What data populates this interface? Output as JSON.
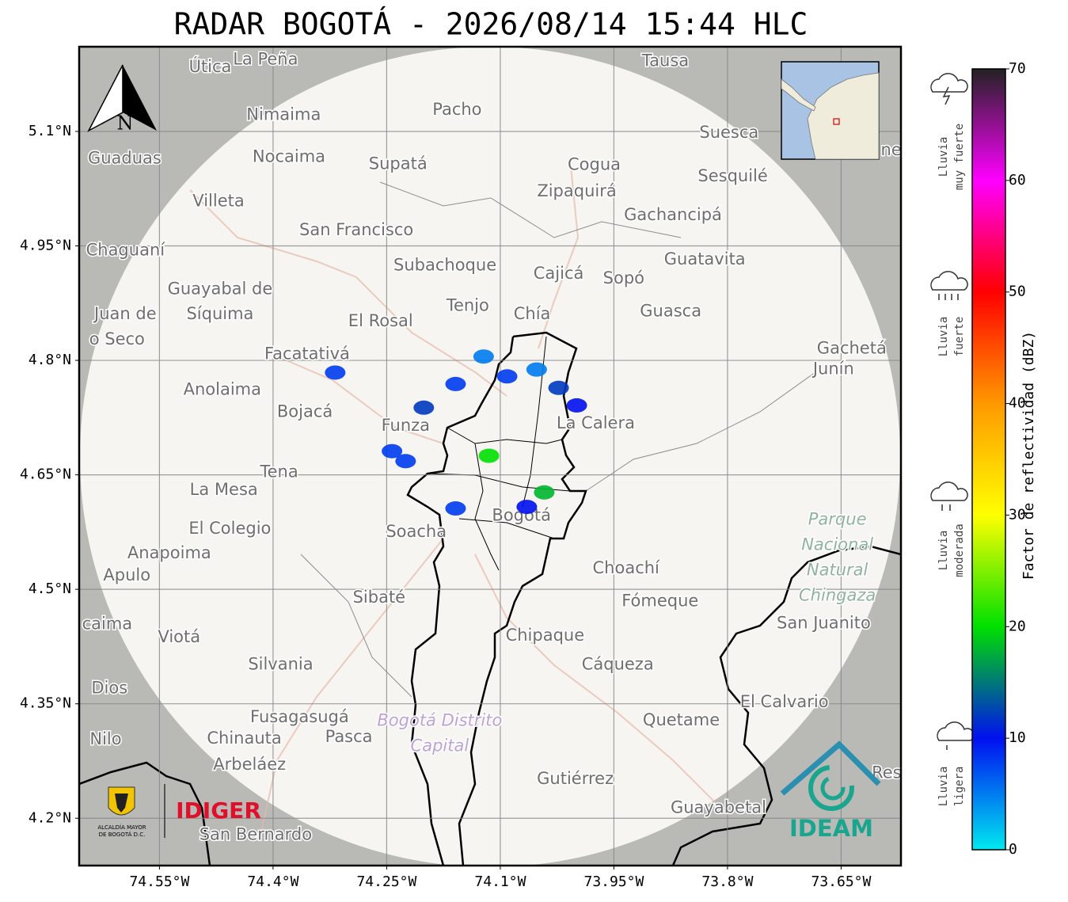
{
  "title": "RADAR BOGOTÁ - 2026/08/14 15:44 HLC",
  "map": {
    "type": "map",
    "xlim": [
      -74.656,
      -73.571
    ],
    "ylim": [
      4.138,
      5.211
    ],
    "xticks": [
      {
        "value": -74.55,
        "label": "74.55°W"
      },
      {
        "value": -74.4,
        "label": "74.4°W"
      },
      {
        "value": -74.25,
        "label": "74.25°W"
      },
      {
        "value": -74.1,
        "label": "74.1°W"
      },
      {
        "value": -73.95,
        "label": "73.95°W"
      },
      {
        "value": -73.8,
        "label": "73.8°W"
      },
      {
        "value": -73.65,
        "label": "73.65°W"
      }
    ],
    "yticks": [
      {
        "value": 4.2,
        "label": "4.2°N"
      },
      {
        "value": 4.35,
        "label": "4.35°N"
      },
      {
        "value": 4.5,
        "label": "4.5°N"
      },
      {
        "value": 4.65,
        "label": "4.65°N"
      },
      {
        "value": 4.8,
        "label": "4.8°N"
      },
      {
        "value": 4.95,
        "label": "4.95°N"
      },
      {
        "value": 5.1,
        "label": "5.1°N"
      }
    ],
    "grid": true,
    "places": [
      {
        "name": "Útica",
        "lon": -74.483,
        "lat": 5.184
      },
      {
        "name": "La Peña",
        "lon": -74.41,
        "lat": 5.194
      },
      {
        "name": "Tausa",
        "lon": -73.882,
        "lat": 5.192
      },
      {
        "name": "Nimaima",
        "lon": -74.386,
        "lat": 5.121
      },
      {
        "name": "Pacho",
        "lon": -74.157,
        "lat": 5.128
      },
      {
        "name": "Guaduas",
        "lon": -74.596,
        "lat": 5.064
      },
      {
        "name": "Nocaima",
        "lon": -74.379,
        "lat": 5.066
      },
      {
        "name": "Supatá",
        "lon": -74.235,
        "lat": 5.057
      },
      {
        "name": "Cogua",
        "lon": -73.976,
        "lat": 5.056
      },
      {
        "name": "Suesca",
        "lon": -73.798,
        "lat": 5.098
      },
      {
        "name": "Sesquilé",
        "lon": -73.793,
        "lat": 5.041
      },
      {
        "name": "Zipaquirá",
        "lon": -73.999,
        "lat": 5.021
      },
      {
        "name": "ne",
        "lon": -73.584,
        "lat": 5.075
      },
      {
        "name": "Villeta",
        "lon": -74.472,
        "lat": 5.008
      },
      {
        "name": "Gachancipá",
        "lon": -73.872,
        "lat": 4.99
      },
      {
        "name": "San Francisco",
        "lon": -74.29,
        "lat": 4.97
      },
      {
        "name": "Chaguaní",
        "lon": -74.595,
        "lat": 4.944
      },
      {
        "name": "Guatavita",
        "lon": -73.83,
        "lat": 4.932
      },
      {
        "name": "Subachoque",
        "lon": -74.173,
        "lat": 4.924
      },
      {
        "name": "Cajicá",
        "lon": -74.023,
        "lat": 4.913
      },
      {
        "name": "Sopó",
        "lon": -73.937,
        "lat": 4.907
      },
      {
        "name": "Guayabal de",
        "lon": -74.47,
        "lat": 4.893
      },
      {
        "name": "Síquima",
        "lon": -74.47,
        "lat": 4.86
      },
      {
        "name": "Tenjo",
        "lon": -74.143,
        "lat": 4.871
      },
      {
        "name": "Chía",
        "lon": -74.058,
        "lat": 4.86
      },
      {
        "name": "Guasca",
        "lon": -73.875,
        "lat": 4.864
      },
      {
        "name": "Juan de",
        "lon": -74.595,
        "lat": 4.86
      },
      {
        "name": "o Seco",
        "lon": -74.606,
        "lat": 4.827
      },
      {
        "name": "El Rosal",
        "lon": -74.258,
        "lat": 4.851
      },
      {
        "name": "Facatativá",
        "lon": -74.355,
        "lat": 4.808
      },
      {
        "name": "Gachetá",
        "lon": -73.636,
        "lat": 4.815
      },
      {
        "name": "Junín",
        "lon": -73.66,
        "lat": 4.788
      },
      {
        "name": "Anolaima",
        "lon": -74.467,
        "lat": 4.761
      },
      {
        "name": "Bojacá",
        "lon": -74.358,
        "lat": 4.732
      },
      {
        "name": "Funza",
        "lon": -74.225,
        "lat": 4.714
      },
      {
        "name": "La Calera",
        "lon": -73.974,
        "lat": 4.717
      },
      {
        "name": "Tena",
        "lon": -74.392,
        "lat": 4.653
      },
      {
        "name": "La Mesa",
        "lon": -74.465,
        "lat": 4.63
      },
      {
        "name": "Bogotá",
        "lon": -74.072,
        "lat": 4.596
      },
      {
        "name": "Soacha",
        "lon": -74.211,
        "lat": 4.575
      },
      {
        "name": "El Colegio",
        "lon": -74.457,
        "lat": 4.579
      },
      {
        "name": "Anapoima",
        "lon": -74.537,
        "lat": 4.547
      },
      {
        "name": "Apulo",
        "lon": -74.593,
        "lat": 4.518
      },
      {
        "name": "Choachí",
        "lon": -73.934,
        "lat": 4.527
      },
      {
        "name": "Sibaté",
        "lon": -74.26,
        "lat": 4.489
      },
      {
        "name": "Fómeque",
        "lon": -73.889,
        "lat": 4.484
      },
      {
        "name": "San Juanito",
        "lon": -73.673,
        "lat": 4.455
      },
      {
        "name": "caima",
        "lon": -74.619,
        "lat": 4.454
      },
      {
        "name": "Viotá",
        "lon": -74.524,
        "lat": 4.437
      },
      {
        "name": "Chipaque",
        "lon": -74.041,
        "lat": 4.439
      },
      {
        "name": "Silvania",
        "lon": -74.39,
        "lat": 4.401
      },
      {
        "name": "Cáqueza",
        "lon": -73.945,
        "lat": 4.401
      },
      {
        "name": "Dios",
        "lon": -74.616,
        "lat": 4.37
      },
      {
        "name": "El Calvario",
        "lon": -73.725,
        "lat": 4.352
      },
      {
        "name": "Fusagasugá",
        "lon": -74.365,
        "lat": 4.332
      },
      {
        "name": "Quetame",
        "lon": -73.861,
        "lat": 4.328
      },
      {
        "name": "Nilo",
        "lon": -74.621,
        "lat": 4.303
      },
      {
        "name": "Chinauta",
        "lon": -74.438,
        "lat": 4.304
      },
      {
        "name": "Pasca",
        "lon": -74.3,
        "lat": 4.306
      },
      {
        "name": "Arbeláez",
        "lon": -74.431,
        "lat": 4.27
      },
      {
        "name": "Res",
        "lon": -73.59,
        "lat": 4.259
      },
      {
        "name": "Gutiérrez",
        "lon": -74.001,
        "lat": 4.251
      },
      {
        "name": "Guayabetal",
        "lon": -73.812,
        "lat": 4.213
      },
      {
        "name": "San Bernardo",
        "lon": -74.423,
        "lat": 4.178
      }
    ],
    "areas": [
      {
        "lines": [
          "Parque",
          "Nacional",
          "Natural",
          "Chingaza"
        ],
        "lon": -73.655,
        "lat": 4.541,
        "style": "park"
      },
      {
        "lines": [
          "Bogotá Distrito",
          "Capital"
        ],
        "lon": -74.18,
        "lat": 4.311,
        "style": "district"
      }
    ],
    "echoes": [
      {
        "lon": -74.201,
        "lat": 4.738,
        "dbz": 12
      },
      {
        "lon": -74.243,
        "lat": 4.681,
        "dbz": 8
      },
      {
        "lon": -74.225,
        "lat": 4.668,
        "dbz": 8
      },
      {
        "lon": -74.122,
        "lat": 4.805,
        "dbz": 5
      },
      {
        "lon": -74.091,
        "lat": 4.779,
        "dbz": 8
      },
      {
        "lon": -74.159,
        "lat": 4.769,
        "dbz": 8
      },
      {
        "lon": -74.023,
        "lat": 4.764,
        "dbz": 12
      },
      {
        "lon": -73.999,
        "lat": 4.741,
        "dbz": 10
      },
      {
        "lon": -74.318,
        "lat": 4.784,
        "dbz": 8
      },
      {
        "lon": -74.052,
        "lat": 4.788,
        "dbz": 5
      },
      {
        "lon": -74.159,
        "lat": 4.606,
        "dbz": 8
      },
      {
        "lon": -74.065,
        "lat": 4.608,
        "dbz": 10
      },
      {
        "lon": -74.115,
        "lat": 4.675,
        "dbz": 20
      },
      {
        "lon": -74.042,
        "lat": 4.627,
        "dbz": 18
      }
    ]
  },
  "colorbar": {
    "label": "Factor de reflectividad (dBZ)",
    "lim": [
      0,
      70
    ],
    "ticks": [
      0,
      10,
      20,
      30,
      40,
      50,
      60,
      70
    ],
    "colors": [
      "#00e8f0",
      "#0010f0",
      "#00e000",
      "#ffff00",
      "#ff9900",
      "#ff0000",
      "#ff00ff",
      "#222222"
    ]
  },
  "rain_levels": [
    {
      "lines": [
        "Lluvia",
        "muy fuerte"
      ]
    },
    {
      "lines": [
        "Lluvia",
        "fuerte"
      ]
    },
    {
      "lines": [
        "Lluvia",
        "moderada"
      ]
    },
    {
      "lines": [
        "Lluvia",
        "ligera"
      ]
    }
  ],
  "north": "N",
  "logos": {
    "alcaldia": [
      "ALCALDÍA MAYOR",
      "DE BOGOTÁ D.C."
    ],
    "idiger": "IDIGER",
    "ideam": "IDEAM"
  }
}
